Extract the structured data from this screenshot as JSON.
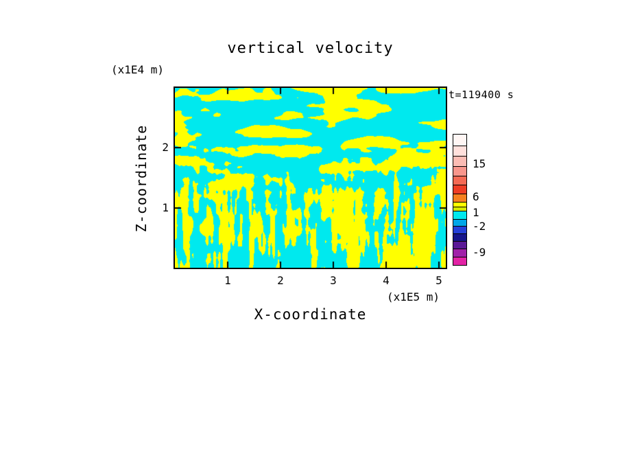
{
  "chart": {
    "title": "vertical velocity",
    "time_label": "t=119400 s",
    "x_axis": {
      "label": "X-coordinate",
      "unit": "(x1E5 m)",
      "ticks": [
        1,
        2,
        3,
        4,
        5
      ]
    },
    "y_axis": {
      "label": "Z-coordinate",
      "unit": "(x1E4 m)",
      "ticks": [
        1,
        2
      ]
    },
    "field_colors": {
      "positive": "#FFFF00",
      "negative": "#00E9EE"
    },
    "colorbar": {
      "segments": [
        {
          "color": "#FFF6F4",
          "h": 16
        },
        {
          "color": "#FFE0DC",
          "h": 15
        },
        {
          "color": "#FBBCB4",
          "h": 15
        },
        {
          "color": "#F8968C",
          "h": 14
        },
        {
          "color": "#F46A55",
          "h": 13
        },
        {
          "color": "#EE3D25",
          "h": 13
        },
        {
          "color": "#F58020",
          "h": 12
        },
        {
          "color": "#FFFF00",
          "h": 7
        },
        {
          "color": "#D4E800",
          "h": 6
        },
        {
          "color": "#00E9EE",
          "h": 12
        },
        {
          "color": "#00A6E8",
          "h": 10
        },
        {
          "color": "#2440D8",
          "h": 11
        },
        {
          "color": "#16168C",
          "h": 11
        },
        {
          "color": "#5A1896",
          "h": 11
        },
        {
          "color": "#A020A8",
          "h": 12
        },
        {
          "color": "#E223A5",
          "h": 12
        }
      ],
      "ticks": [
        {
          "label": "15",
          "offset": 44
        },
        {
          "label": "6",
          "offset": 92
        },
        {
          "label": "1",
          "offset": 115
        },
        {
          "label": "-2",
          "offset": 135
        },
        {
          "label": "-9",
          "offset": 173
        }
      ]
    }
  },
  "chart_data": {
    "type": "heatmap",
    "title": "vertical velocity",
    "xlabel": "X-coordinate",
    "ylabel": "Z-coordinate",
    "x_unit": "(x1E5 m)",
    "y_unit": "(x1E4 m)",
    "x_ticks": [
      1,
      2,
      3,
      4,
      5
    ],
    "y_ticks": [
      1,
      2
    ],
    "x_range": [
      0,
      5.13
    ],
    "y_range": [
      0,
      3.0
    ],
    "time_annotation": "t=119400 s",
    "colorbar_tick_values": [
      15,
      6,
      1,
      -2,
      -9
    ],
    "value_bands": {
      "yellow": "values approximately 1 to 6",
      "cyan": "values approximately -2 to 1"
    },
    "description": "Filled contour cross-section of a turbulent vertical-velocity field: interleaved cyan and yellow regions only (field stays within the -2..6 bands), with horizontally elongated wave structures in the upper third of the domain and fine vertical striations in the lower half."
  }
}
